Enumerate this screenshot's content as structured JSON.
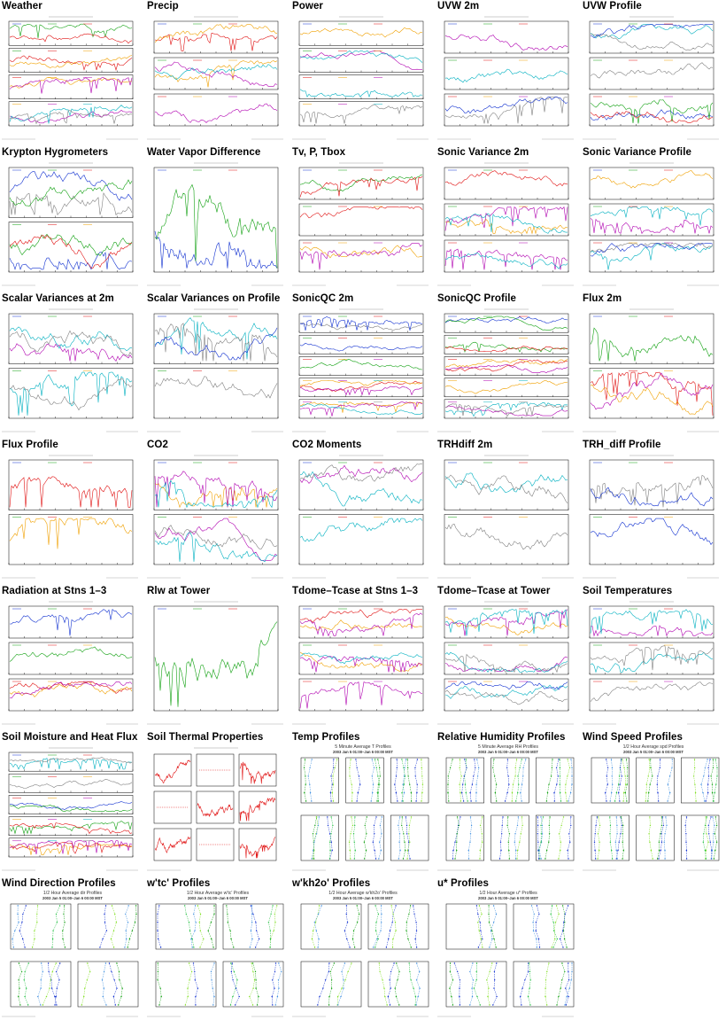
{
  "cells": [
    {
      "title": "Weather",
      "style": "ts",
      "panels": 4,
      "seed": 1
    },
    {
      "title": "Precip",
      "style": "ts",
      "panels": 3,
      "seed": 2
    },
    {
      "title": "Power",
      "style": "ts",
      "panels": 4,
      "seed": 3
    },
    {
      "title": "UVW 2m",
      "style": "ts",
      "panels": 3,
      "seed": 4
    },
    {
      "title": "UVW Profile",
      "style": "ts",
      "panels": 3,
      "seed": 5
    },
    {
      "title": "Krypton Hygrometers",
      "style": "ts",
      "panels": 2,
      "seed": 6
    },
    {
      "title": "Water Vapor Difference",
      "style": "ts",
      "panels": 1,
      "seed": 7
    },
    {
      "title": "Tv, P, Tbox",
      "style": "ts",
      "panels": 3,
      "seed": 8
    },
    {
      "title": "Sonic Variance 2m",
      "style": "ts",
      "panels": 3,
      "seed": 9
    },
    {
      "title": "Sonic Variance Profile",
      "style": "ts",
      "panels": 3,
      "seed": 10
    },
    {
      "title": "Scalar Variances at 2m",
      "style": "ts",
      "panels": 2,
      "seed": 11
    },
    {
      "title": "Scalar Variances on Profile",
      "style": "ts",
      "panels": 2,
      "seed": 12
    },
    {
      "title": "SonicQC 2m",
      "style": "ts",
      "panels": 5,
      "seed": 13
    },
    {
      "title": "SonicQC Profile",
      "style": "ts",
      "panels": 5,
      "seed": 14
    },
    {
      "title": "Flux 2m",
      "style": "ts",
      "panels": 2,
      "seed": 15
    },
    {
      "title": "Flux Profile",
      "style": "ts",
      "panels": 2,
      "seed": 16
    },
    {
      "title": "CO2",
      "style": "ts",
      "panels": 2,
      "seed": 17
    },
    {
      "title": "CO2 Moments",
      "style": "ts",
      "panels": 2,
      "seed": 18
    },
    {
      "title": "TRHdiff 2m",
      "style": "ts",
      "panels": 2,
      "seed": 19
    },
    {
      "title": "TRH_diff Profile",
      "style": "ts",
      "panels": 2,
      "seed": 20
    },
    {
      "title": "Radiation at Stns 1–3",
      "style": "ts",
      "panels": 3,
      "seed": 21
    },
    {
      "title": "Rlw at Tower",
      "style": "ts",
      "panels": 1,
      "seed": 22
    },
    {
      "title": "Tdome–Tcase at Stns 1–3",
      "style": "ts",
      "panels": 3,
      "seed": 23
    },
    {
      "title": "Tdome–Tcase at Tower",
      "style": "ts",
      "panels": 3,
      "seed": 24
    },
    {
      "title": "Soil Temperatures",
      "style": "ts",
      "panels": 3,
      "seed": 25
    },
    {
      "title": "Soil Moisture and Heat Flux",
      "style": "ts",
      "panels": 5,
      "seed": 26
    },
    {
      "title": "Soil Thermal Properties",
      "style": "grid3",
      "panels": 9,
      "seed": 27
    },
    {
      "title": "Temp Profiles",
      "style": "prof",
      "panels": 6,
      "seed": 28,
      "ptitle": "5 Minute Average T Profiles",
      "psub": "2003 Jan 5 01:00–Jan 6 00:00 MST"
    },
    {
      "title": "Relative Humidity Profiles",
      "style": "prof",
      "panels": 6,
      "seed": 29,
      "ptitle": "5 Minute Average RH Profiles",
      "psub": "2003 Jan 5 01:00–Jan 6 00:00 MST"
    },
    {
      "title": "Wind Speed Profiles",
      "style": "prof",
      "panels": 6,
      "seed": 30,
      "ptitle": "1/2 Hour Average spd Profiles",
      "psub": "2003 Jan 5 01:00–Jan 6 00:00 MST"
    },
    {
      "title": "Wind Direction Profiles",
      "style": "prof",
      "panels": 4,
      "seed": 31,
      "ptitle": "1/2 Hour Average dir Profiles",
      "psub": "2003 Jan 5 01:00–Jan 6 00:00 MST"
    },
    {
      "title": "w'tc' Profiles",
      "style": "prof",
      "panels": 4,
      "seed": 32,
      "ptitle": "1/2 Hour Average w'tc' Profiles",
      "psub": "2003 Jan 5 01:00–Jan 6 00:00 MST"
    },
    {
      "title": "w'kh2o' Profiles",
      "style": "prof",
      "panels": 4,
      "seed": 33,
      "ptitle": "1/2 Hour Average w'kh2o' Profiles",
      "psub": "2003 Jan 5 01:00–Jan 6 00:00 MST"
    },
    {
      "title": "u* Profiles",
      "style": "prof",
      "panels": 4,
      "seed": 34,
      "ptitle": "1/2 Hour Average u* Profiles",
      "psub": "2003 Jan 5 01:00–Jan 6 00:00 MST"
    }
  ],
  "colors": {
    "blue": "#1030d0",
    "green": "#10a010",
    "red": "#e01010",
    "orange": "#f0a000",
    "magenta": "#b000b0",
    "cyan": "#00b0c0",
    "grey": "#808080",
    "lime": "#80e020"
  }
}
